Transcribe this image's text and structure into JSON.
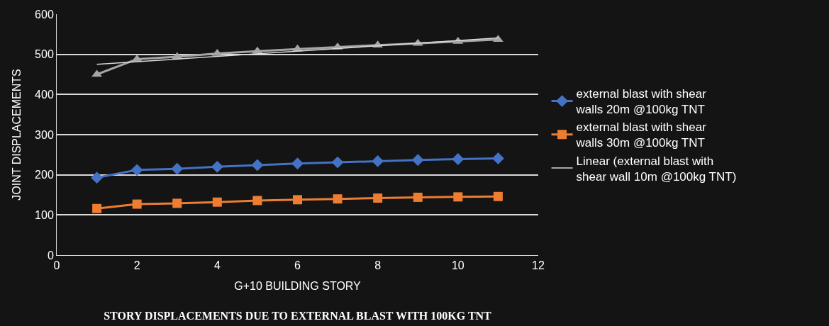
{
  "chart_data": {
    "type": "line",
    "title": "STORY DISPLACEMENTS DUE TO EXTERNAL BLAST WITH 100KG TNT",
    "xlabel": "G+10 BUILDING STORY",
    "ylabel": "JOINT DISPLACEMENTS",
    "x": [
      1,
      2,
      3,
      4,
      5,
      6,
      7,
      8,
      9,
      10,
      11
    ],
    "series": [
      {
        "color": "#a5a5a5",
        "marker": "triangle",
        "values": [
          450,
          488,
          494,
          502,
          508,
          513,
          518,
          523,
          527,
          532,
          537
        ]
      },
      {
        "name": "external blast with shear walls 20m @100kg TNT",
        "color": "#4472c4",
        "marker": "diamond",
        "values": [
          193,
          212,
          215,
          220,
          224,
          228,
          231,
          234,
          237,
          239,
          241
        ]
      },
      {
        "name": "external blast with shear walls 30m @100kg TNT",
        "color": "#ed7d31",
        "marker": "square",
        "values": [
          116,
          127,
          129,
          132,
          136,
          138,
          140,
          142,
          144,
          145,
          146
        ]
      },
      {
        "name": "Linear (external blast with shear wall 10m @100kg TNT)",
        "color": "#d9d9d9",
        "marker": "none",
        "x": [
          1,
          11
        ],
        "values": [
          475,
          541
        ]
      }
    ],
    "xlim": [
      0,
      12
    ],
    "xticks": [
      0,
      2,
      4,
      6,
      8,
      10,
      12
    ],
    "ylim": [
      0,
      600
    ],
    "yticks": [
      0,
      100,
      200,
      300,
      400,
      500,
      600
    ],
    "grid": "y",
    "legend": "right"
  }
}
